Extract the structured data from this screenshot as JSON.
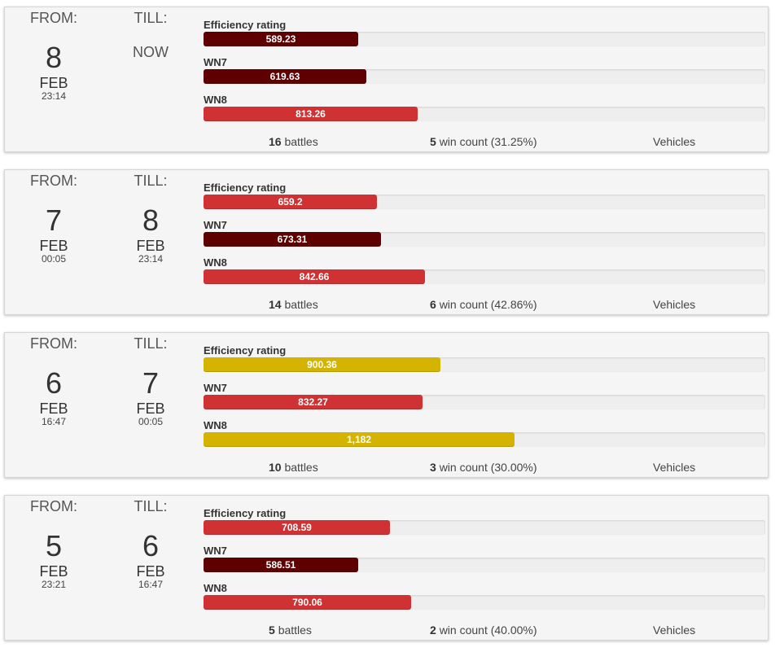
{
  "labels": {
    "from": "FROM:",
    "till": "TILL:",
    "battles_suffix": "battles",
    "win_suffix": "win count",
    "vehicles": "Vehicles",
    "metrics": [
      "Efficiency rating",
      "WN7",
      "WN8"
    ]
  },
  "colors": {
    "dark_red": "#5e0000",
    "red": "#d03234",
    "yellow": "#d4b400"
  },
  "scale_max": 2135,
  "periods": [
    {
      "from": {
        "day": "8",
        "month": "FEB",
        "time": "23:14"
      },
      "till": {
        "now": "NOW"
      },
      "metrics": [
        {
          "value": 589.23,
          "display": "589.23",
          "color": "dark_red"
        },
        {
          "value": 619.63,
          "display": "619.63",
          "color": "dark_red"
        },
        {
          "value": 813.26,
          "display": "813.26",
          "color": "red"
        }
      ],
      "battles": "16",
      "wins": "5",
      "win_pct": "(31.25%)"
    },
    {
      "from": {
        "day": "7",
        "month": "FEB",
        "time": "00:05"
      },
      "till": {
        "day": "8",
        "month": "FEB",
        "time": "23:14"
      },
      "metrics": [
        {
          "value": 659.2,
          "display": "659.2",
          "color": "red"
        },
        {
          "value": 673.31,
          "display": "673.31",
          "color": "dark_red"
        },
        {
          "value": 842.66,
          "display": "842.66",
          "color": "red"
        }
      ],
      "battles": "14",
      "wins": "6",
      "win_pct": "(42.86%)"
    },
    {
      "from": {
        "day": "6",
        "month": "FEB",
        "time": "16:47"
      },
      "till": {
        "day": "7",
        "month": "FEB",
        "time": "00:05"
      },
      "metrics": [
        {
          "value": 900.36,
          "display": "900.36",
          "color": "yellow"
        },
        {
          "value": 832.27,
          "display": "832.27",
          "color": "red"
        },
        {
          "value": 1182,
          "display": "1,182",
          "color": "yellow"
        }
      ],
      "battles": "10",
      "wins": "3",
      "win_pct": "(30.00%)"
    },
    {
      "from": {
        "day": "5",
        "month": "FEB",
        "time": "23:21"
      },
      "till": {
        "day": "6",
        "month": "FEB",
        "time": "16:47"
      },
      "metrics": [
        {
          "value": 708.59,
          "display": "708.59",
          "color": "red"
        },
        {
          "value": 586.51,
          "display": "586.51",
          "color": "dark_red"
        },
        {
          "value": 790.06,
          "display": "790.06",
          "color": "red"
        }
      ],
      "battles": "5",
      "wins": "2",
      "win_pct": "(40.00%)"
    }
  ]
}
